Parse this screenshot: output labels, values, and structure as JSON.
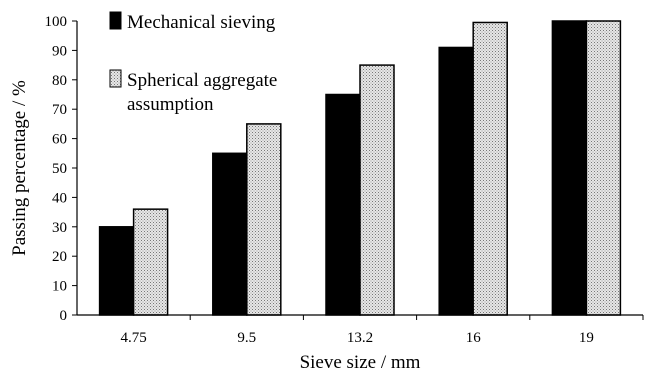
{
  "chart_data": {
    "type": "bar",
    "categories": [
      "4.75",
      "9.5",
      "13.2",
      "16",
      "19"
    ],
    "series": [
      {
        "name": "Mechanical sieving",
        "values": [
          30,
          55,
          75,
          91,
          100
        ],
        "color": "#000000",
        "pattern": "solid"
      },
      {
        "name": "Spherical aggregate assumption",
        "values": [
          36,
          65,
          85,
          99.5,
          100
        ],
        "color": "#cfcfcf",
        "pattern": "stipple"
      }
    ],
    "xlabel": "Sieve size / mm",
    "ylabel": "Passing percentage / %",
    "ylim": [
      0,
      100
    ],
    "yticks": [
      0,
      10,
      20,
      30,
      40,
      50,
      60,
      70,
      80,
      90,
      100
    ],
    "grid": false,
    "legend": {
      "placement": "top-left",
      "entries": [
        {
          "lines": [
            "Mechanical sieving"
          ]
        },
        {
          "lines": [
            "Spherical aggregate",
            "assumption"
          ]
        }
      ]
    }
  }
}
